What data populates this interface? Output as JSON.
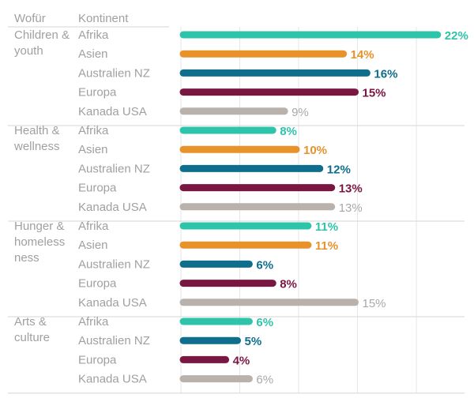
{
  "headers": {
    "group": "Wofür",
    "continent": "Kontinent"
  },
  "colors": {
    "Afrika": "#2ec4a9",
    "Asien": "#e8922a",
    "Australien NZ": "#0e6e8c",
    "Europa": "#7a1642",
    "Kanada USA": "#b9b1ac"
  },
  "chart_data": {
    "type": "bar",
    "orientation": "horizontal",
    "unit": "%",
    "xlim": [
      0,
      25
    ],
    "grid": true,
    "groups": [
      {
        "label": [
          "Children &",
          "youth"
        ],
        "items": [
          {
            "continent": "Afrika",
            "value": 22
          },
          {
            "continent": "Asien",
            "value": 14
          },
          {
            "continent": "Australien NZ",
            "value": 16
          },
          {
            "continent": "Europa",
            "value": 15
          },
          {
            "continent": "Kanada USA",
            "value": 9
          }
        ]
      },
      {
        "label": [
          "Health &",
          "wellness"
        ],
        "items": [
          {
            "continent": "Afrika",
            "value": 8
          },
          {
            "continent": "Asien",
            "value": 10
          },
          {
            "continent": "Australien NZ",
            "value": 12
          },
          {
            "continent": "Europa",
            "value": 13
          },
          {
            "continent": "Kanada USA",
            "value": 13
          }
        ]
      },
      {
        "label": [
          "Hunger &",
          "homeless",
          "ness"
        ],
        "items": [
          {
            "continent": "Afrika",
            "value": 11
          },
          {
            "continent": "Asien",
            "value": 11
          },
          {
            "continent": "Australien NZ",
            "value": 6
          },
          {
            "continent": "Europa",
            "value": 8
          },
          {
            "continent": "Kanada USA",
            "value": 15
          }
        ]
      },
      {
        "label": [
          "Arts &",
          "culture"
        ],
        "items": [
          {
            "continent": "Afrika",
            "value": 6
          },
          {
            "continent": "Australien NZ",
            "value": 5
          },
          {
            "continent": "Europa",
            "value": 4
          },
          {
            "continent": "Kanada USA",
            "value": 6
          }
        ]
      }
    ]
  }
}
